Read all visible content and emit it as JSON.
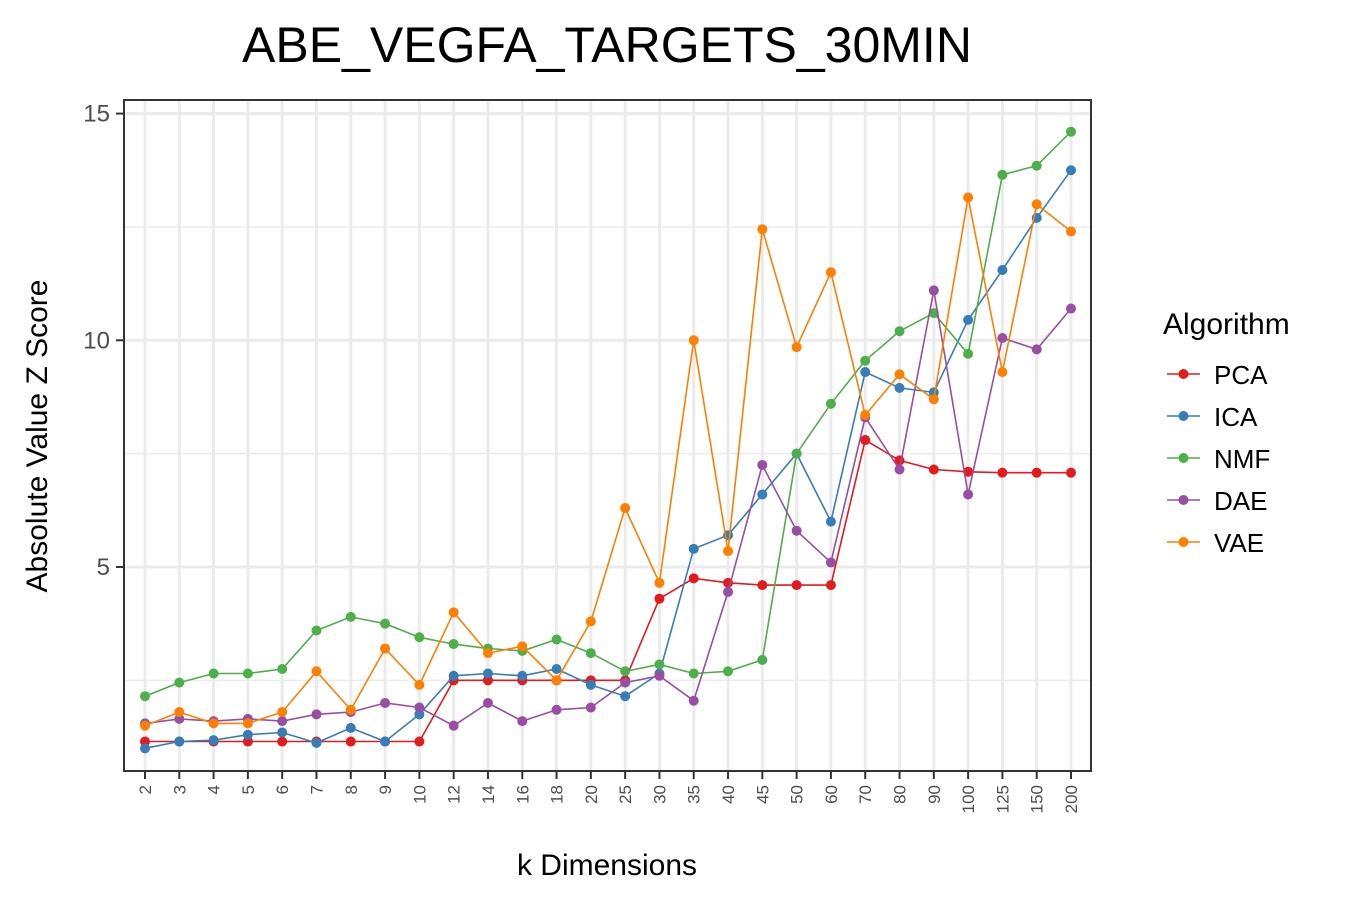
{
  "chart_data": {
    "type": "line",
    "title": "ABE_VEGFA_TARGETS_30MIN",
    "xlabel": "k Dimensions",
    "ylabel": "Absolute Value Z Score",
    "categories": [
      "2",
      "3",
      "4",
      "5",
      "6",
      "7",
      "8",
      "9",
      "10",
      "12",
      "14",
      "16",
      "18",
      "20",
      "25",
      "30",
      "35",
      "40",
      "45",
      "50",
      "60",
      "70",
      "80",
      "90",
      "100",
      "125",
      "150",
      "200"
    ],
    "yticks": [
      5,
      10,
      15
    ],
    "ylim": [
      0.5,
      15.3
    ],
    "grid": true,
    "legend": {
      "title": "Algorithm",
      "position": "right"
    },
    "series": [
      {
        "name": "PCA",
        "color": "#e41a1c",
        "values": [
          1.15,
          1.15,
          1.15,
          1.15,
          1.15,
          1.15,
          1.15,
          1.15,
          1.15,
          2.5,
          2.5,
          2.5,
          2.5,
          2.5,
          2.5,
          4.3,
          4.75,
          4.65,
          4.6,
          4.6,
          4.6,
          7.8,
          7.35,
          7.15,
          7.1,
          7.08,
          7.08,
          7.08
        ]
      },
      {
        "name": "ICA",
        "color": "#377eb8",
        "values": [
          1.0,
          1.15,
          1.18,
          1.3,
          1.35,
          1.12,
          1.45,
          1.15,
          1.75,
          2.6,
          2.65,
          2.6,
          2.75,
          2.4,
          2.15,
          2.65,
          5.4,
          5.7,
          6.6,
          7.5,
          6.0,
          9.3,
          8.95,
          8.85,
          10.45,
          11.55,
          12.7,
          13.75
        ]
      },
      {
        "name": "NMF",
        "color": "#4daf4a",
        "values": [
          2.15,
          2.45,
          2.65,
          2.65,
          2.75,
          3.6,
          3.9,
          3.75,
          3.45,
          3.3,
          3.2,
          3.15,
          3.4,
          3.1,
          2.7,
          2.85,
          2.65,
          2.7,
          2.95,
          7.5,
          8.6,
          9.55,
          10.2,
          10.6,
          9.7,
          13.65,
          13.85,
          14.6
        ]
      },
      {
        "name": "DAE",
        "color": "#984ea3",
        "values": [
          1.55,
          1.65,
          1.6,
          1.65,
          1.6,
          1.75,
          1.8,
          2.0,
          1.9,
          1.5,
          2.0,
          1.6,
          1.85,
          1.9,
          2.45,
          2.6,
          2.05,
          4.45,
          7.25,
          5.8,
          5.1,
          8.3,
          7.15,
          11.1,
          6.6,
          10.05,
          9.8,
          10.7
        ]
      },
      {
        "name": "VAE",
        "color": "#ff7f00",
        "values": [
          1.5,
          1.8,
          1.55,
          1.55,
          1.8,
          2.7,
          1.85,
          3.2,
          2.4,
          4.0,
          3.1,
          3.25,
          2.5,
          3.8,
          6.3,
          4.65,
          10.0,
          5.35,
          12.45,
          9.85,
          11.5,
          8.35,
          9.25,
          8.7,
          13.15,
          9.3,
          13.0,
          12.4
        ]
      }
    ]
  }
}
